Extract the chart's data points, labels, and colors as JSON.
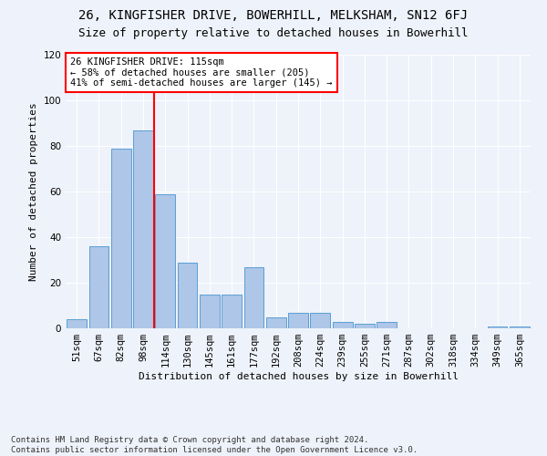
{
  "title": "26, KINGFISHER DRIVE, BOWERHILL, MELKSHAM, SN12 6FJ",
  "subtitle": "Size of property relative to detached houses in Bowerhill",
  "xlabel": "Distribution of detached houses by size in Bowerhill",
  "ylabel": "Number of detached properties",
  "bar_categories": [
    "51sqm",
    "67sqm",
    "82sqm",
    "98sqm",
    "114sqm",
    "130sqm",
    "145sqm",
    "161sqm",
    "177sqm",
    "192sqm",
    "208sqm",
    "224sqm",
    "239sqm",
    "255sqm",
    "271sqm",
    "287sqm",
    "302sqm",
    "318sqm",
    "334sqm",
    "349sqm",
    "365sqm"
  ],
  "bar_values": [
    4,
    36,
    79,
    87,
    59,
    29,
    15,
    15,
    27,
    5,
    7,
    7,
    3,
    2,
    3,
    0,
    0,
    0,
    0,
    1,
    1
  ],
  "bar_color": "#aec6e8",
  "bar_edge_color": "#5a9fd4",
  "vline_x_index": 4,
  "vline_color": "red",
  "annotation_text": "26 KINGFISHER DRIVE: 115sqm\n← 58% of detached houses are smaller (205)\n41% of semi-detached houses are larger (145) →",
  "annotation_box_color": "white",
  "annotation_box_edge_color": "red",
  "ylim": [
    0,
    120
  ],
  "yticks": [
    0,
    20,
    40,
    60,
    80,
    100,
    120
  ],
  "footer_text": "Contains HM Land Registry data © Crown copyright and database right 2024.\nContains public sector information licensed under the Open Government Licence v3.0.",
  "background_color": "#eef2fa",
  "grid_color": "white",
  "title_fontsize": 10,
  "subtitle_fontsize": 9,
  "label_fontsize": 8,
  "tick_fontsize": 7.5,
  "footer_fontsize": 6.5,
  "annotation_fontsize": 7.5
}
